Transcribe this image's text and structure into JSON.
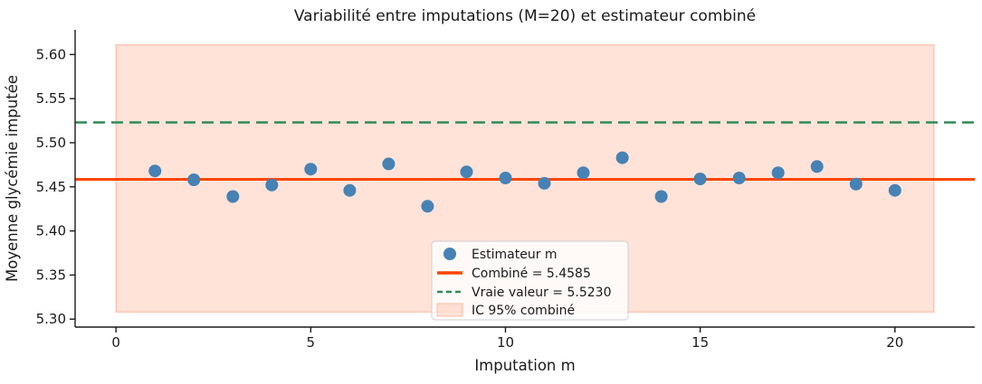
{
  "chart_data": {
    "type": "scatter",
    "title": "Variabilité entre imputations (M=20) et estimateur combiné",
    "xlabel": "Imputation m",
    "ylabel": "Moyenne glycémie imputée",
    "xlim": [
      -1.05,
      22.05
    ],
    "ylim": [
      5.291,
      5.628
    ],
    "grid": false,
    "x_ticks": [
      0,
      5,
      10,
      15,
      20
    ],
    "x_tick_labels": [
      "0",
      "5",
      "10",
      "15",
      "20"
    ],
    "y_ticks": [
      5.3,
      5.35,
      5.4,
      5.45,
      5.5,
      5.55,
      5.6
    ],
    "y_tick_labels": [
      "5.30",
      "5.35",
      "5.40",
      "5.45",
      "5.50",
      "5.55",
      "5.60"
    ],
    "legend_position": "bottom-center",
    "points": {
      "name": "Estimateur m",
      "color": "#4682B4",
      "x": [
        1,
        2,
        3,
        4,
        5,
        6,
        7,
        8,
        9,
        10,
        11,
        12,
        13,
        14,
        15,
        16,
        17,
        18,
        19,
        20
      ],
      "y": [
        5.468,
        5.458,
        5.439,
        5.452,
        5.47,
        5.446,
        5.476,
        5.428,
        5.467,
        5.46,
        5.454,
        5.466,
        5.483,
        5.439,
        5.459,
        5.46,
        5.466,
        5.473,
        5.453,
        5.446
      ]
    },
    "combined_line": {
      "label": "Combiné = 5.4585",
      "value": 5.4585,
      "color": "#FF4500",
      "style": "solid"
    },
    "true_value_line": {
      "label": "Vraie valeur = 5.5230",
      "value": 5.523,
      "color": "#2E8B57",
      "style": "dashed"
    },
    "ci_band": {
      "label": "IC 95% combiné",
      "low": 5.308,
      "high": 5.611,
      "x_start": 0,
      "x_end": 21,
      "color": "#FF4500",
      "alpha": 0.15
    }
  }
}
